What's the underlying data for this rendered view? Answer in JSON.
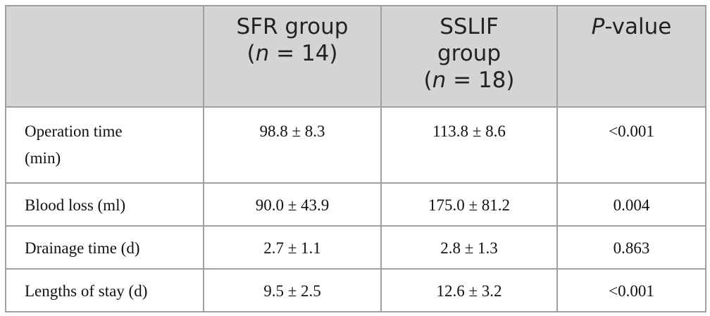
{
  "table": {
    "header": [
      [
        "SFR group",
        "(",
        "n",
        " = 14)"
      ],
      [
        "SSLIF",
        "group",
        "(",
        "n",
        " = 18)"
      ],
      [
        "P",
        "-value"
      ]
    ],
    "rows": [
      [
        "Operation time (min)",
        "98.8 ± 8.3",
        "113.8 ± 8.6",
        "<0.001"
      ],
      [
        "Blood loss (ml)",
        "90.0 ± 43.9",
        "175.0 ± 81.2",
        "0.004"
      ],
      [
        "Drainage time (d)",
        "2.7 ± 1.1",
        "2.8 ± 1.3",
        "0.863"
      ],
      [
        "Lengths of stay (d)",
        "9.5 ± 2.5",
        "12.6 ± 3.2",
        "<0.001"
      ]
    ]
  }
}
